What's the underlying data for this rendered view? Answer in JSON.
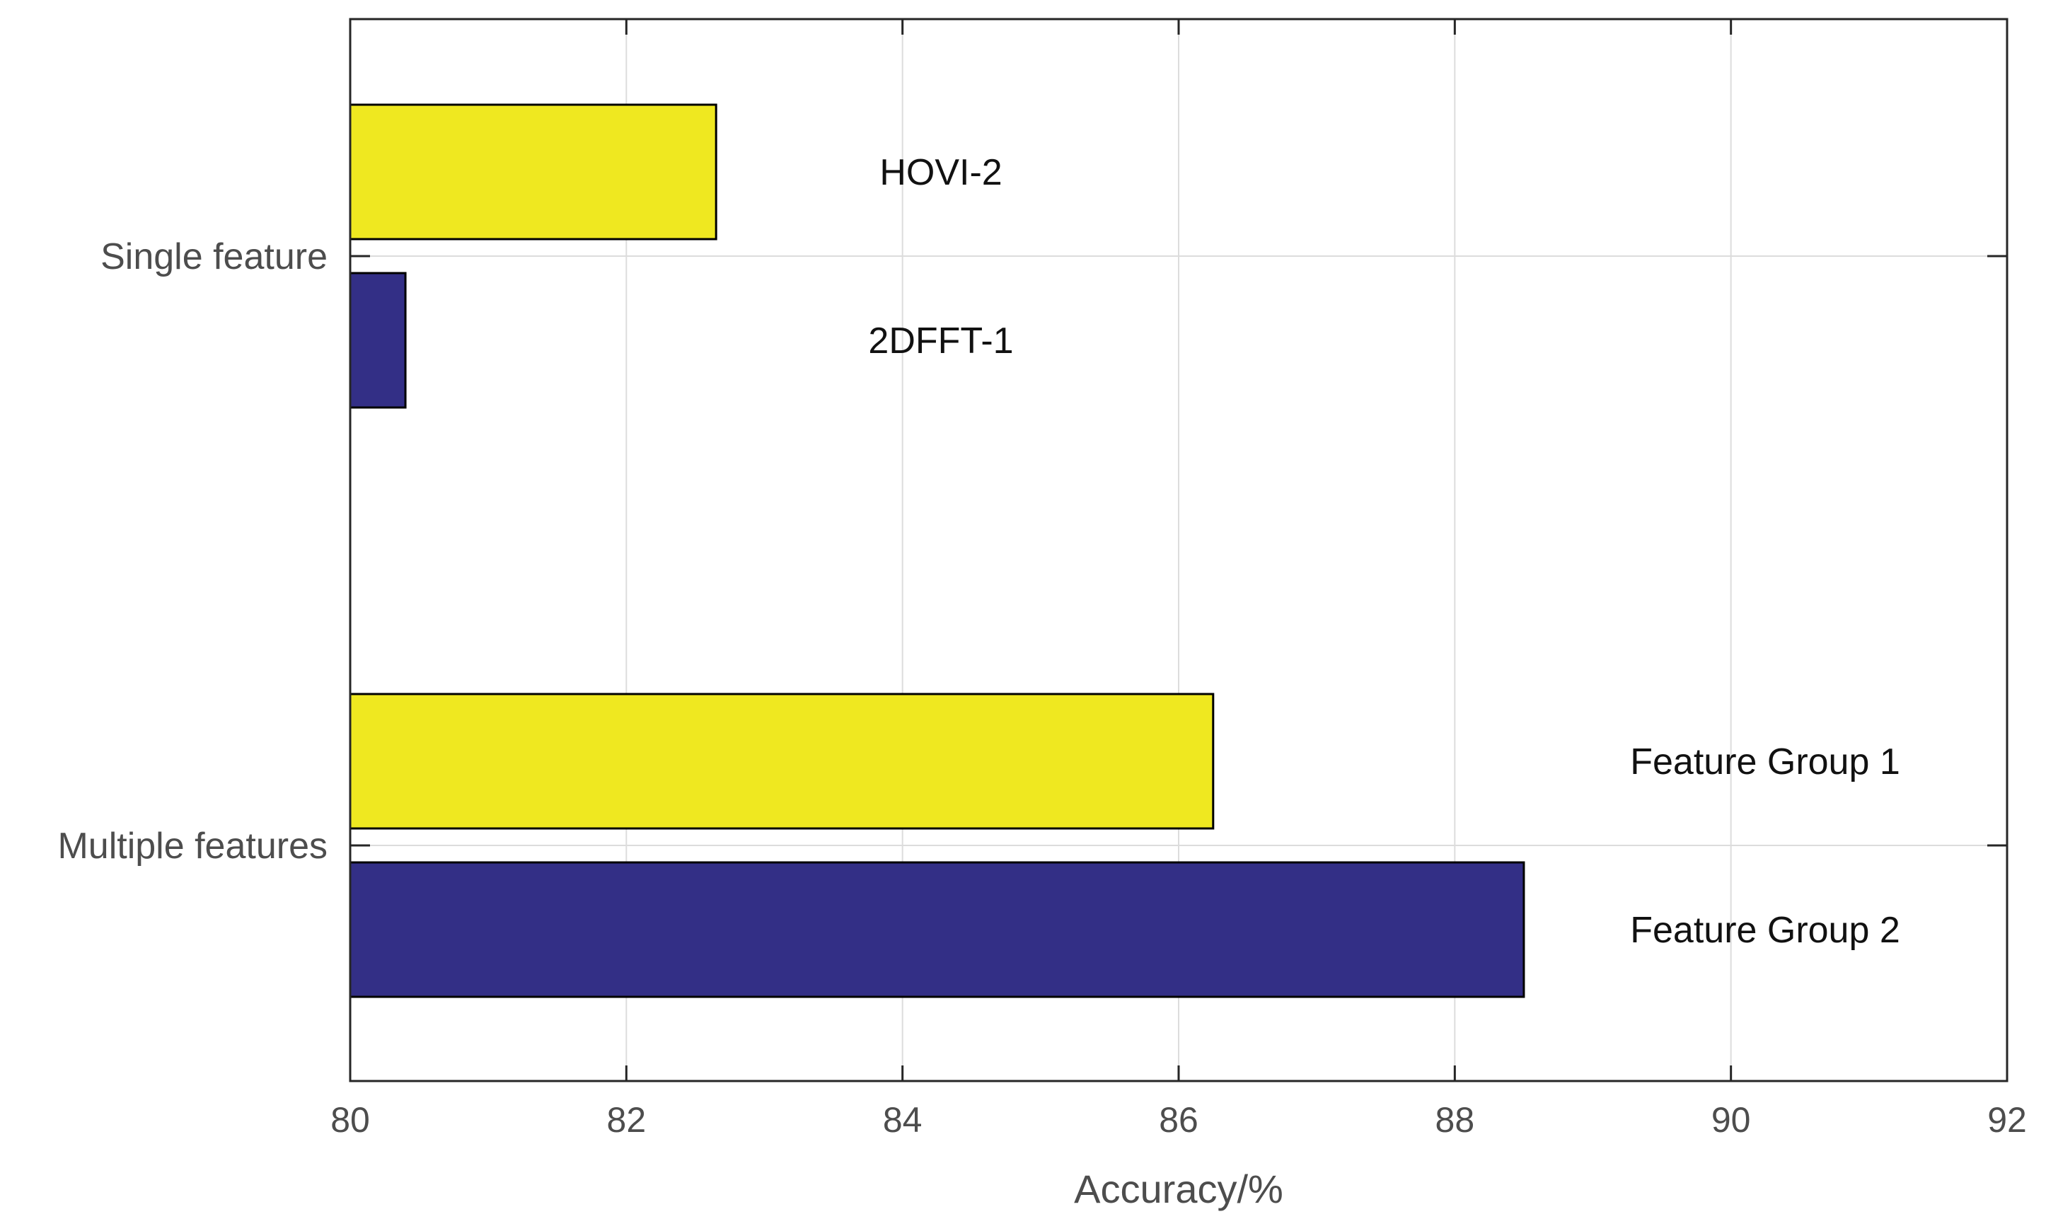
{
  "chart_data": {
    "type": "bar",
    "orientation": "horizontal",
    "categories": [
      "Single feature",
      "Multiple features"
    ],
    "series": [
      {
        "labels": [
          "HOVI-2",
          "Feature Group 1"
        ],
        "values": [
          82.65,
          86.25
        ],
        "color": "#EFE820"
      },
      {
        "labels": [
          "2DFFT-1",
          "Feature Group 2"
        ],
        "values": [
          80.4,
          88.5
        ],
        "color": "#332F86"
      }
    ],
    "xlabel": "Accuracy/%",
    "ylabel": "",
    "title": "",
    "xlim": [
      80,
      92
    ],
    "xticks": [
      "80",
      "82",
      "84",
      "86",
      "88",
      "90",
      "92"
    ],
    "grid": true,
    "colors": {
      "axis": "#262626",
      "tick_text": "#4D4D4D",
      "grid": "#DCDCDC",
      "bar_edge": "#000000",
      "label_text": "#111111"
    }
  }
}
